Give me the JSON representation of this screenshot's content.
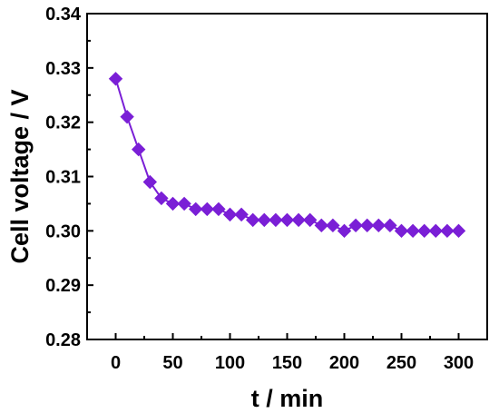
{
  "chart_data": {
    "type": "line",
    "xlabel": "t / min",
    "ylabel": "Cell voltage / V",
    "xlim": [
      -25,
      325
    ],
    "ylim": [
      0.28,
      0.34
    ],
    "xticks": [
      0,
      50,
      100,
      150,
      200,
      250,
      300
    ],
    "yticks": [
      0.28,
      0.29,
      0.3,
      0.31,
      0.32,
      0.33,
      0.34
    ],
    "ytick_labels": [
      "0.28",
      "0.29",
      "0.30",
      "0.31",
      "0.32",
      "0.33",
      "0.34"
    ],
    "grid": false,
    "legend": "none",
    "series": [
      {
        "color": "#7a1fd6",
        "marker": "diamond",
        "x": [
          0,
          10,
          20,
          30,
          40,
          50,
          60,
          70,
          80,
          90,
          100,
          110,
          120,
          130,
          140,
          150,
          160,
          170,
          180,
          190,
          200,
          210,
          220,
          230,
          240,
          250,
          260,
          270,
          280,
          290,
          300
        ],
        "y": [
          0.328,
          0.321,
          0.315,
          0.309,
          0.306,
          0.305,
          0.305,
          0.304,
          0.304,
          0.304,
          0.303,
          0.303,
          0.302,
          0.302,
          0.302,
          0.302,
          0.302,
          0.302,
          0.301,
          0.301,
          0.3,
          0.301,
          0.301,
          0.301,
          0.301,
          0.3,
          0.3,
          0.3,
          0.3,
          0.3,
          0.3
        ]
      }
    ]
  }
}
